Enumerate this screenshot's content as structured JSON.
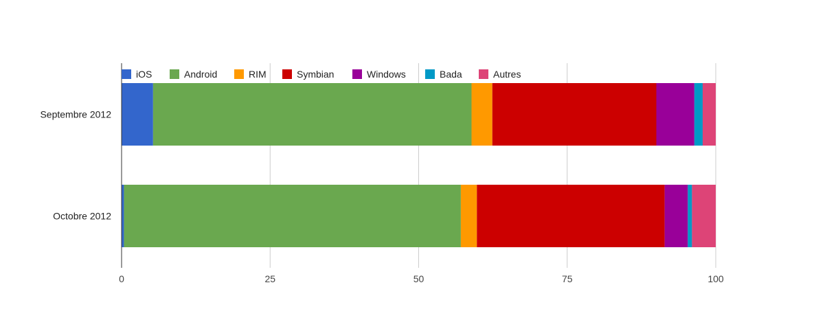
{
  "chart_data": {
    "type": "bar",
    "orientation": "horizontal",
    "stacked": true,
    "categories": [
      "Septembre 2012",
      "Octobre 2012"
    ],
    "series": [
      {
        "name": "iOS",
        "color": "#3366cc",
        "values": [
          5.3,
          0.4
        ]
      },
      {
        "name": "Android",
        "color": "#6aa84f",
        "values": [
          53.6,
          56.7
        ]
      },
      {
        "name": "RIM",
        "color": "#ff9900",
        "values": [
          3.5,
          2.7
        ]
      },
      {
        "name": "Symbian",
        "color": "#cc0000",
        "values": [
          27.6,
          31.6
        ]
      },
      {
        "name": "Windows",
        "color": "#990099",
        "values": [
          6.4,
          3.9
        ]
      },
      {
        "name": "Bada",
        "color": "#0099c6",
        "values": [
          1.4,
          0.7
        ]
      },
      {
        "name": "Autres",
        "color": "#dd4477",
        "values": [
          2.2,
          4.0
        ]
      }
    ],
    "xlim": [
      0,
      100
    ],
    "xticks": [
      "0",
      "25",
      "50",
      "75",
      "100"
    ],
    "grid": true,
    "legend_position": "top"
  }
}
